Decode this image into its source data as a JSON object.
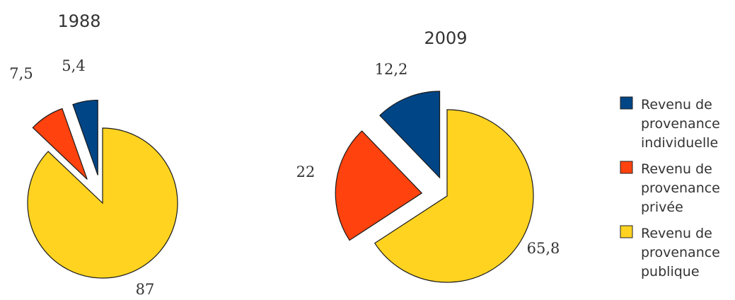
{
  "chart_data": {
    "type": "pie",
    "categories": [
      "Revenu de provenance individuelle",
      "Revenu de provenance privée",
      "Revenu de provenance publique"
    ],
    "colors": [
      "#004586",
      "#ff420e",
      "#ffd320"
    ],
    "legend_position": "right",
    "legend": {
      "entries": [
        [
          "Revenu de",
          "provenance",
          "individuelle"
        ],
        [
          "Revenu de",
          "provenance",
          "privée"
        ],
        [
          "Revenu de",
          "provenance",
          "publique"
        ]
      ]
    },
    "pies": [
      {
        "title": "1988",
        "values": [
          5.4,
          7.5,
          87
        ],
        "labels": [
          "5,4",
          "7,5",
          "87"
        ]
      },
      {
        "title": "2009",
        "values": [
          12.2,
          22,
          65.8
        ],
        "labels": [
          "12,2",
          "22",
          "65,8"
        ]
      }
    ]
  }
}
